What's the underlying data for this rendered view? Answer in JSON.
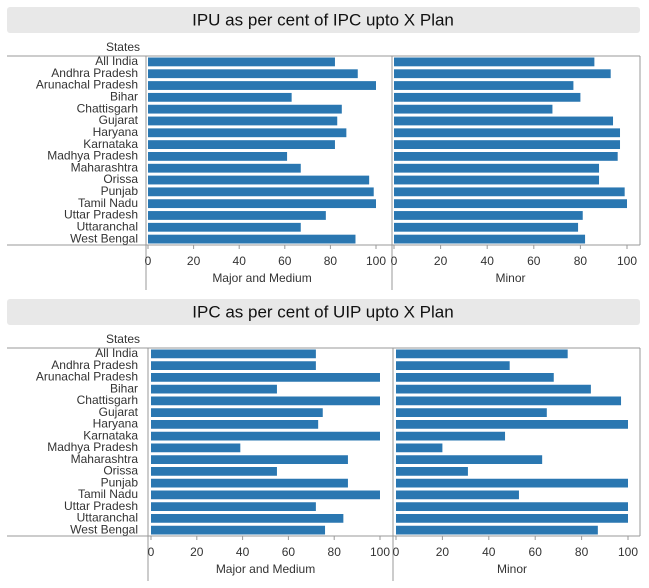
{
  "chart_data": [
    {
      "type": "bar",
      "orientation": "horizontal",
      "title": "IPU as per cent of IPC upto X Plan",
      "category_label": "States",
      "categories": [
        "All India",
        "Andhra Pradesh",
        "Arunachal Pradesh",
        "Bihar",
        "Chattisgarh",
        "Gujarat",
        "Haryana",
        "Karnataka",
        "Madhya Pradesh",
        "Maharashtra",
        "Orissa",
        "Punjab",
        "Tamil Nadu",
        "Uttar Pradesh",
        "Uttaranchal",
        "West Bengal"
      ],
      "series": [
        {
          "name": "Major and Medium",
          "color": "#2a77b1",
          "values": [
            82,
            92,
            100,
            63,
            85,
            83,
            87,
            82,
            61,
            67,
            97,
            99,
            100,
            78,
            67,
            91
          ]
        },
        {
          "name": "Minor",
          "color": "#2a77b1",
          "values": [
            86,
            93,
            77,
            80,
            68,
            94,
            97,
            97,
            96,
            88,
            88,
            99,
            100,
            81,
            79,
            82
          ]
        }
      ],
      "xlim": [
        0,
        100
      ],
      "xticks": [
        0,
        20,
        40,
        60,
        80,
        100
      ]
    },
    {
      "type": "bar",
      "orientation": "horizontal",
      "title": "IPC as per cent of UIP upto X Plan",
      "category_label": "States",
      "categories": [
        "All India",
        "Andhra Pradesh",
        "Arunachal Pradesh",
        "Bihar",
        "Chattisgarh",
        "Gujarat",
        "Haryana",
        "Karnataka",
        "Madhya Pradesh",
        "Maharashtra",
        "Orissa",
        "Punjab",
        "Tamil Nadu",
        "Uttar Pradesh",
        "Uttaranchal",
        "West Bengal"
      ],
      "series": [
        {
          "name": "Major and Medium",
          "color": "#2a77b1",
          "values": [
            72,
            72,
            100,
            55,
            100,
            75,
            73,
            100,
            39,
            86,
            55,
            86,
            100,
            72,
            84,
            76
          ]
        },
        {
          "name": "Minor",
          "color": "#2a77b1",
          "values": [
            74,
            49,
            68,
            84,
            97,
            65,
            100,
            47,
            20,
            63,
            31,
            100,
            53,
            100,
            100,
            87
          ]
        }
      ],
      "xlim": [
        0,
        100
      ],
      "xticks": [
        0,
        20,
        40,
        60,
        80,
        100
      ]
    }
  ]
}
